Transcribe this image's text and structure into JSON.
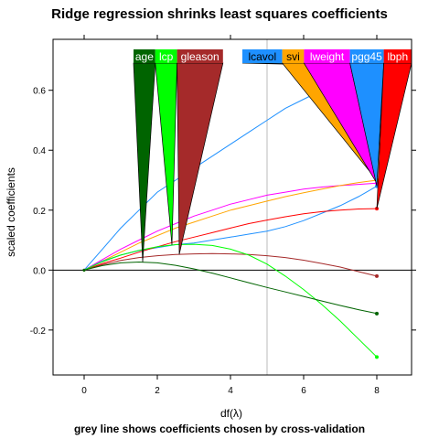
{
  "chart_data": {
    "type": "line",
    "title": "Ridge regression shrinks least squares coefficients",
    "subtitle": "grey line shows coefficients chosen by cross-validation",
    "xlabel": "df(λ)",
    "ylabel": "scaled coefficients",
    "xlim": [
      -0.85,
      8.95
    ],
    "ylim": [
      -0.35,
      0.77
    ],
    "x_ticks": [
      0,
      2,
      4,
      6,
      8
    ],
    "y_ticks": [
      -0.2,
      0.0,
      0.2,
      0.4,
      0.6
    ],
    "x_tick_labels": [
      "0",
      "2",
      "4",
      "6",
      "8"
    ],
    "y_tick_labels": [
      "-0.2",
      "0.0",
      "0.2",
      "0.4",
      "0.6"
    ],
    "reference_vline": 5.0,
    "reference_hline": 0.0,
    "series": [
      {
        "name": "lcavol",
        "color": "#1e90ff",
        "x": [
          0,
          0.5,
          1,
          1.5,
          2,
          2.5,
          3,
          3.5,
          4,
          4.5,
          5,
          5.5,
          6,
          6.5,
          7,
          7.5,
          8
        ],
        "values": [
          0,
          0.07,
          0.14,
          0.2,
          0.26,
          0.3,
          0.34,
          0.38,
          0.42,
          0.46,
          0.5,
          0.54,
          0.57,
          0.6,
          0.63,
          0.66,
          0.68
        ]
      },
      {
        "name": "lweight",
        "color": "#ff00ff",
        "x": [
          0,
          0.5,
          1,
          1.5,
          2,
          2.5,
          3,
          3.5,
          4,
          4.5,
          5,
          5.5,
          6,
          6.5,
          7,
          7.5,
          8
        ],
        "values": [
          0,
          0.035,
          0.07,
          0.1,
          0.13,
          0.155,
          0.18,
          0.2,
          0.22,
          0.235,
          0.25,
          0.26,
          0.27,
          0.277,
          0.282,
          0.286,
          0.29
        ]
      },
      {
        "name": "svi",
        "color": "#ffa500",
        "x": [
          0,
          0.5,
          1,
          1.5,
          2,
          2.5,
          3,
          3.5,
          4,
          4.5,
          5,
          5.5,
          6,
          6.5,
          7,
          7.5,
          8
        ],
        "values": [
          0,
          0.03,
          0.06,
          0.09,
          0.115,
          0.14,
          0.16,
          0.18,
          0.2,
          0.215,
          0.23,
          0.245,
          0.258,
          0.27,
          0.282,
          0.292,
          0.3
        ]
      },
      {
        "name": "pgg45",
        "color": "#1e90ff",
        "x": [
          0,
          0.5,
          1,
          1.5,
          2,
          2.5,
          3,
          3.5,
          4,
          4.5,
          5,
          5.5,
          6,
          6.5,
          7,
          7.5,
          8
        ],
        "values": [
          0,
          0.03,
          0.05,
          0.065,
          0.075,
          0.085,
          0.09,
          0.1,
          0.11,
          0.12,
          0.13,
          0.145,
          0.165,
          0.19,
          0.215,
          0.245,
          0.28
        ]
      },
      {
        "name": "lbph",
        "color": "#ff0000",
        "x": [
          0,
          0.5,
          1,
          1.5,
          2,
          2.5,
          3,
          3.5,
          4,
          4.5,
          5,
          5.5,
          6,
          6.5,
          7,
          7.5,
          8
        ],
        "values": [
          0,
          0.022,
          0.04,
          0.06,
          0.078,
          0.095,
          0.11,
          0.125,
          0.14,
          0.155,
          0.167,
          0.178,
          0.188,
          0.195,
          0.2,
          0.204,
          0.205
        ]
      },
      {
        "name": "gleason",
        "color": "#a52a2a",
        "x": [
          0,
          0.5,
          1,
          1.5,
          2,
          2.5,
          3,
          3.5,
          4,
          4.5,
          5,
          5.5,
          6,
          6.5,
          7,
          7.5,
          8
        ],
        "values": [
          0,
          0.018,
          0.032,
          0.042,
          0.048,
          0.052,
          0.054,
          0.055,
          0.054,
          0.052,
          0.048,
          0.042,
          0.033,
          0.022,
          0.01,
          -0.005,
          -0.02
        ]
      },
      {
        "name": "lcp",
        "color": "#00ff00",
        "x": [
          0,
          0.5,
          1,
          1.5,
          2,
          2.5,
          3,
          3.5,
          4,
          4.5,
          5,
          5.5,
          6,
          6.5,
          7,
          7.5,
          8
        ],
        "values": [
          0,
          0.028,
          0.05,
          0.066,
          0.078,
          0.085,
          0.086,
          0.082,
          0.07,
          0.05,
          0.02,
          -0.02,
          -0.065,
          -0.115,
          -0.17,
          -0.23,
          -0.29
        ]
      },
      {
        "name": "age",
        "color": "#006400",
        "x": [
          0,
          0.5,
          1,
          1.5,
          2,
          2.5,
          3,
          3.5,
          4,
          4.5,
          5,
          5.5,
          6,
          6.5,
          7,
          7.5,
          8
        ],
        "values": [
          0,
          0.015,
          0.024,
          0.027,
          0.024,
          0.016,
          0.004,
          -0.01,
          -0.026,
          -0.042,
          -0.058,
          -0.073,
          -0.088,
          -0.103,
          -0.118,
          -0.132,
          -0.145
        ]
      }
    ],
    "labels_left": [
      {
        "name": "age",
        "color": "#006400",
        "text_color": "#ffffff",
        "anchor_x": 1.6
      },
      {
        "name": "lcp",
        "color": "#00ff00",
        "text_color": "#ffffff",
        "anchor_x": 2.4
      },
      {
        "name": "gleason",
        "color": "#a52a2a",
        "text_color": "#ffffff",
        "anchor_x": 2.6
      }
    ],
    "labels_right": [
      {
        "name": "lcavol",
        "color": "#1e90ff",
        "text_color": "#000000",
        "anchor_x": 8
      },
      {
        "name": "svi",
        "color": "#ffa500",
        "text_color": "#000000",
        "anchor_x": 8
      },
      {
        "name": "lweight",
        "color": "#ff00ff",
        "text_color": "#ffffff",
        "anchor_x": 8
      },
      {
        "name": "pgg45",
        "color": "#1e90ff",
        "text_color": "#ffffff",
        "anchor_x": 8
      },
      {
        "name": "lbph",
        "color": "#ff0000",
        "text_color": "#ffffff",
        "anchor_x": 8
      }
    ]
  }
}
